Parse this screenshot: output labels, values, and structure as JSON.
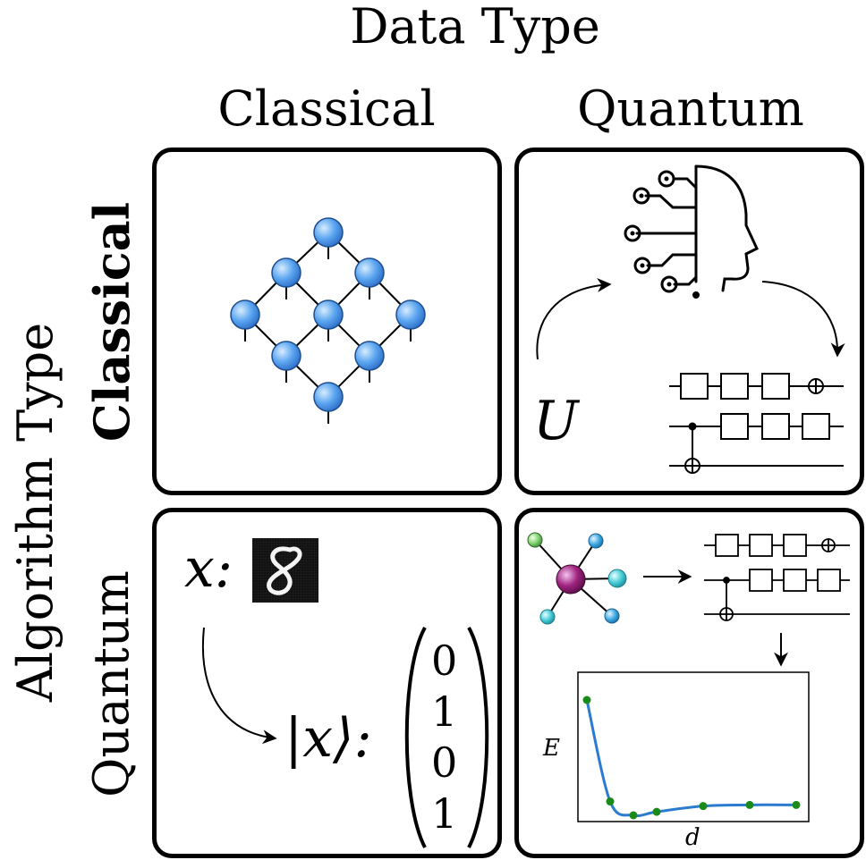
{
  "header": {
    "title": "Data Type",
    "columns": [
      "Classical",
      "Quantum"
    ]
  },
  "side": {
    "title": "Algorithm Type",
    "rows": [
      "Classical",
      "Quantum"
    ]
  },
  "panels": {
    "classical_quantum": {
      "unitary_label": "U"
    },
    "quantum_classical": {
      "x_label": "x:",
      "mnist_digit": "8",
      "ket_label": "|x⟩:",
      "vector": [
        "0",
        "1",
        "0",
        "1"
      ]
    },
    "quantum_quantum": {
      "chart_data": {
        "type": "line",
        "xlabel": "d",
        "ylabel": "E",
        "x": [
          1,
          2,
          3,
          4,
          6,
          8,
          10
        ],
        "y": [
          1.0,
          0.12,
          0.0,
          0.03,
          0.08,
          0.09,
          0.09
        ],
        "line_color": "#2b7bd0",
        "marker_color": "#1a8a1a",
        "grid": false
      }
    }
  }
}
